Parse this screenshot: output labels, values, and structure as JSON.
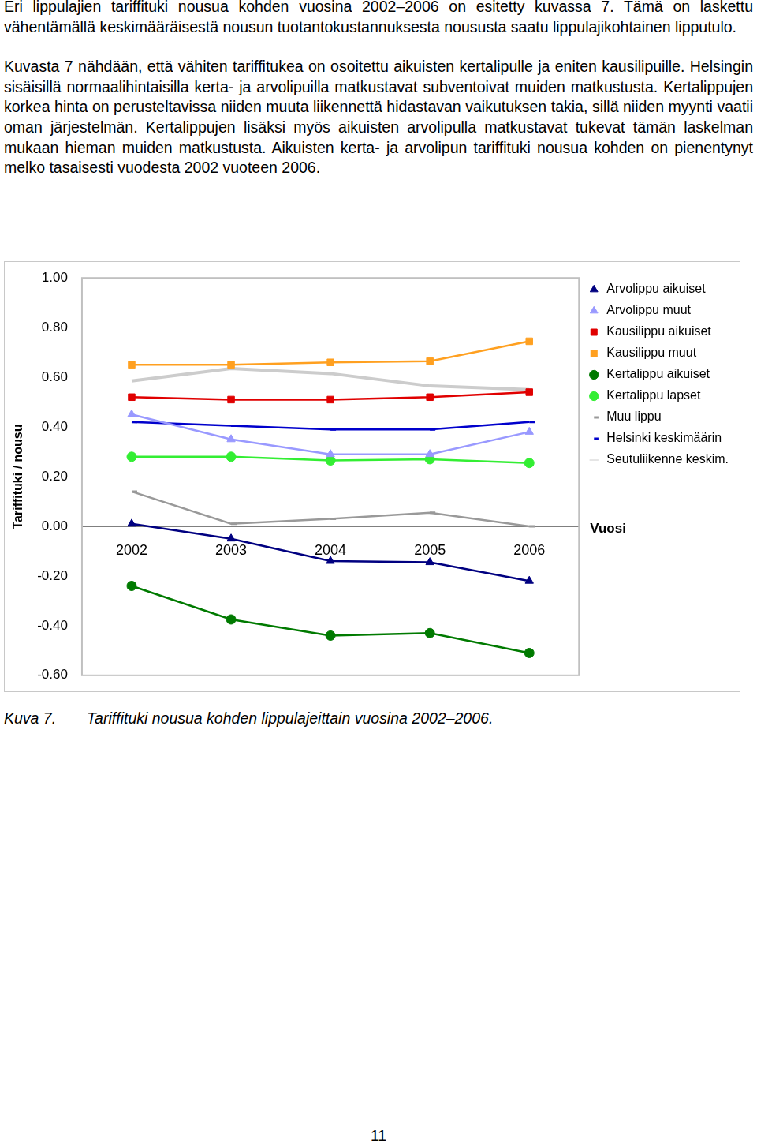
{
  "document": {
    "paragraphs": [
      "Eri lippulajien tariffituki nousua kohden vuosina 2002–2006 on esitetty kuvassa 7. Tämä on laskettu vähentämällä keskimääräisestä nousun tuotantokustannuksesta noususta saatu lippulajikohtainen lipputulo.",
      "Kuvasta 7 nähdään, että vähiten tariffitukea on osoitettu aikuisten kertalipulle ja eniten kausilipuille. Helsingin sisäisillä normaalihintaisilla kerta- ja arvolipuilla matkustavat subventoivat muiden matkustusta. Kertalippujen korkea hinta on perusteltavissa niiden muuta liikennettä hidastavan vaikutuksen takia, sillä niiden myynti vaatii oman järjestelmän. Kertalippujen lisäksi myös aikuisten arvolipulla matkustavat tukevat tämän laskelman mukaan hieman muiden matkustusta. Aikuisten kerta- ja arvolipun tariffituki nousua kohden on pienentynyt melko tasaisesti vuodesta 2002 vuoteen 2006."
    ],
    "caption": {
      "label": "Kuva 7.",
      "text": "Tariffituki nousua kohden lippulajeittain vuosina 2002–2006."
    },
    "page_number": 11
  },
  "chart_data": {
    "type": "line",
    "x_label": "Vuosi",
    "y_label": "Tariffituki / nousu",
    "categories": [
      "2002",
      "2003",
      "2004",
      "2005",
      "2006"
    ],
    "ylim": [
      -0.6,
      1.0
    ],
    "yticks": [
      {
        "value": -0.6,
        "label": "-0.60"
      },
      {
        "value": -0.4,
        "label": "-0.40"
      },
      {
        "value": -0.2,
        "label": "-0.20"
      },
      {
        "value": 0,
        "label": "0.00"
      },
      {
        "value": 0.2,
        "label": "0.20"
      },
      {
        "value": 0.4,
        "label": "0.40"
      },
      {
        "value": 0.6,
        "label": "0.60"
      },
      {
        "value": 0.8,
        "label": "0.80"
      },
      {
        "value": 1.0,
        "label": "1.00"
      }
    ],
    "grid": false,
    "legend": "right",
    "series": [
      {
        "name": "Arvolippu aikuiset",
        "color": "#000080",
        "marker": "triangle",
        "values": [
          0.01,
          -0.05,
          -0.14,
          -0.145,
          -0.22
        ]
      },
      {
        "name": "Arvolippu muut",
        "color": "#9999ff",
        "marker": "triangle",
        "values": [
          0.45,
          0.35,
          0.29,
          0.29,
          0.38
        ]
      },
      {
        "name": "Kausilippu aikuiset",
        "color": "#e00000",
        "marker": "square",
        "values": [
          0.52,
          0.51,
          0.51,
          0.52,
          0.54
        ]
      },
      {
        "name": "Kausilippu muut",
        "color": "#ffa020",
        "marker": "square",
        "values": [
          0.65,
          0.65,
          0.66,
          0.665,
          0.745
        ]
      },
      {
        "name": "Kertalippu aikuiset",
        "color": "#007a00",
        "marker": "circle",
        "values": [
          -0.24,
          -0.375,
          -0.44,
          -0.43,
          -0.51
        ]
      },
      {
        "name": "Kertalippu lapset",
        "color": "#33ee33",
        "marker": "circle",
        "values": [
          0.28,
          0.28,
          0.265,
          0.27,
          0.255
        ]
      },
      {
        "name": "Muu lippu",
        "color": "#999999",
        "marker": "dash",
        "values": [
          0.14,
          0.01,
          0.03,
          0.055,
          0.0
        ]
      },
      {
        "name": "Helsinki keskimäärin",
        "color": "#0000cc",
        "marker": "dash",
        "values": [
          0.42,
          0.405,
          0.39,
          0.39,
          0.42
        ]
      },
      {
        "name": "Seutuliikenne keskim.",
        "color": "#cccccc",
        "marker": "none",
        "values": [
          0.585,
          0.635,
          0.615,
          0.565,
          0.55
        ]
      }
    ]
  }
}
